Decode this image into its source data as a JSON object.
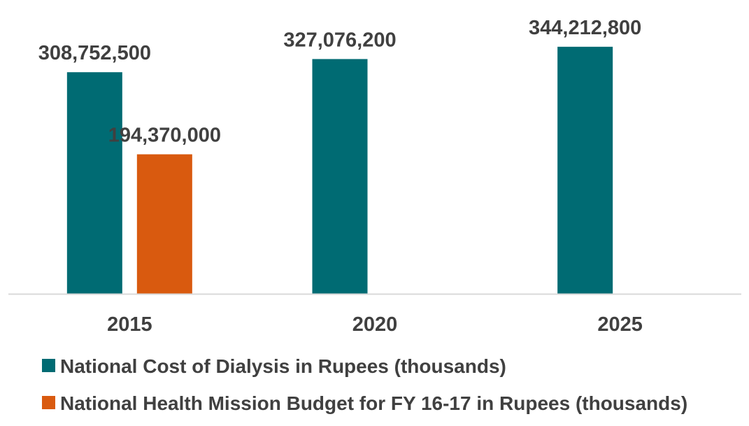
{
  "chart_data": {
    "type": "bar",
    "categories": [
      "2015",
      "2020",
      "2025"
    ],
    "series": [
      {
        "name": "National Cost of Dialysis in Rupees (thousands)",
        "color": "#006B73",
        "values": [
          308752500,
          327076200,
          344212800
        ],
        "labels": [
          "308,752,500",
          "327,076,200",
          "344,212,800"
        ]
      },
      {
        "name": "National Health Mission Budget for FY 16-17 in Rupees (thousands)",
        "color": "#D95A0F",
        "values": [
          194370000,
          null,
          null
        ],
        "labels": [
          "194,370,000",
          null,
          null
        ]
      }
    ],
    "ylim": [
      0,
      400000000
    ],
    "grid": false,
    "legend_position": "bottom"
  }
}
